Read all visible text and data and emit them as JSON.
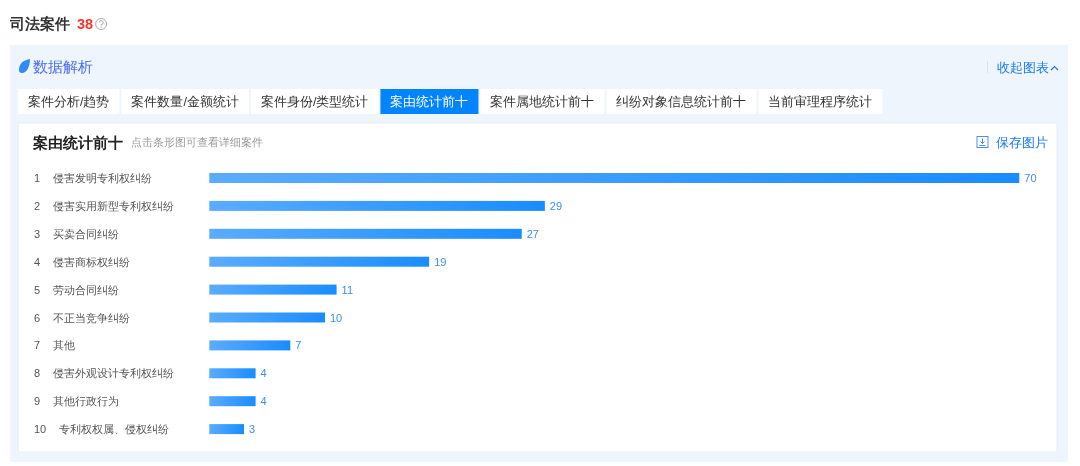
{
  "chart_data": {
    "type": "bar",
    "orientation": "horizontal",
    "title": "案由统计前十",
    "subtitle": "点击条形图可查看详细案件",
    "categories": [
      "1 侵害发明专利权纠纷",
      "2 侵害实用新型专利权纠纷",
      "3 买卖合同纠纷",
      "4 侵害商标权纠纷",
      "5 劳动合同纠纷",
      "6 不正当竞争纠纷",
      "7 其他",
      "8 侵害外观设计专利权纠纷",
      "9 其他行政行为",
      "10 专利权权属、侵权纠纷"
    ],
    "values": [
      70,
      29,
      27,
      19,
      11,
      10,
      7,
      4,
      4,
      3
    ],
    "color": "#1a8cff",
    "data_labels": true,
    "tick_labels": "y",
    "annotations": [
      "司法案件 38",
      "数据解析",
      "收起图表",
      "案件分析/趋势",
      "案件数量/金额统计",
      "案件身份/类型统计",
      "案由统计前十",
      "案件属地统计前十",
      "纠纷对象信息统计前十",
      "当前审理程序统计",
      "保存图片"
    ]
  }
}
